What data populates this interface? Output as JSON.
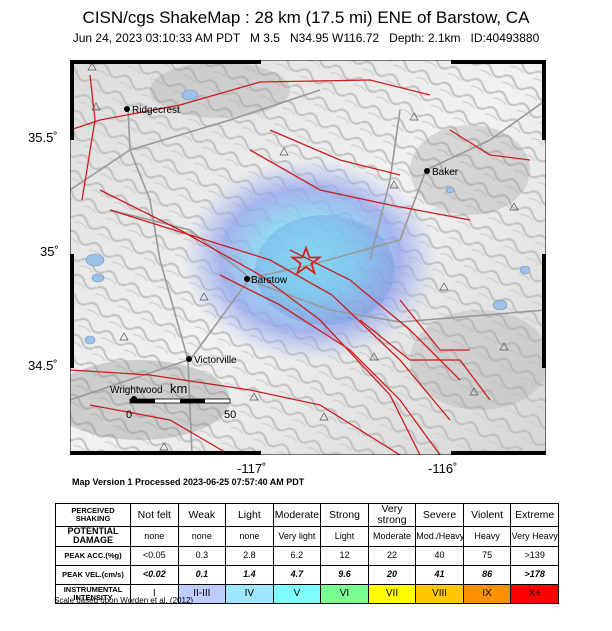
{
  "title": "CISN/cgs ShakeMap : 28 km (17.5 mi) ENE of Barstow, CA",
  "subtitle": "Jun 24, 2023 03:10:33 AM PDT   M 3.5   N34.95 W116.72   Depth: 2.1km   ID:40493880",
  "map": {
    "lat_labels": [
      "35.5˚",
      "35˚",
      "34.5˚"
    ],
    "lon_labels": [
      "-117˚",
      "-116˚"
    ],
    "cities": [
      "Ridgecrest",
      "Baker",
      "Barstow",
      "Victorville",
      "Wrightwood"
    ],
    "scalebar": {
      "unit": "km",
      "start": "0",
      "end": "50"
    },
    "colors": {
      "fault": "#cc1e1e",
      "road": "#9a9a9a",
      "water": "#8fb4dd",
      "epicenter": "#d42020"
    }
  },
  "version_text": "Map Version 1 Processed 2023-06-25 07:57:40 AM PDT",
  "scale_table": {
    "rows": [
      {
        "label": "PERCEIVED SHAKING",
        "cells": [
          "Not felt",
          "Weak",
          "Light",
          "Moderate",
          "Strong",
          "Very strong",
          "Severe",
          "Violent",
          "Extreme"
        ]
      },
      {
        "label": "POTENTIAL DAMAGE",
        "cells": [
          "none",
          "none",
          "none",
          "Very light",
          "Light",
          "Moderate",
          "Mod./Heavy",
          "Heavy",
          "Very Heavy"
        ]
      },
      {
        "label": "PEAK ACC.(%g)",
        "cells": [
          "<0.05",
          "0.3",
          "2.8",
          "6.2",
          "12",
          "22",
          "40",
          "75",
          ">139"
        ]
      },
      {
        "label": "PEAK VEL.(cm/s)",
        "cells": [
          "<0.02",
          "0.1",
          "1.4",
          "4.7",
          "9.6",
          "20",
          "41",
          "86",
          ">178"
        ]
      },
      {
        "label": "INSTRUMENTAL INTENSITY",
        "cells": [
          "I",
          "II-III",
          "IV",
          "V",
          "VI",
          "VII",
          "VIII",
          "IX",
          "X+"
        ]
      }
    ],
    "intensity_colors": [
      "#ffffff",
      "#bfccff",
      "#a0e6ff",
      "#80ffff",
      "#7aff93",
      "#ffff00",
      "#ffc800",
      "#ff9100",
      "#ff0000"
    ]
  },
  "credit": "Scale based upon Worden et al. (2012)"
}
